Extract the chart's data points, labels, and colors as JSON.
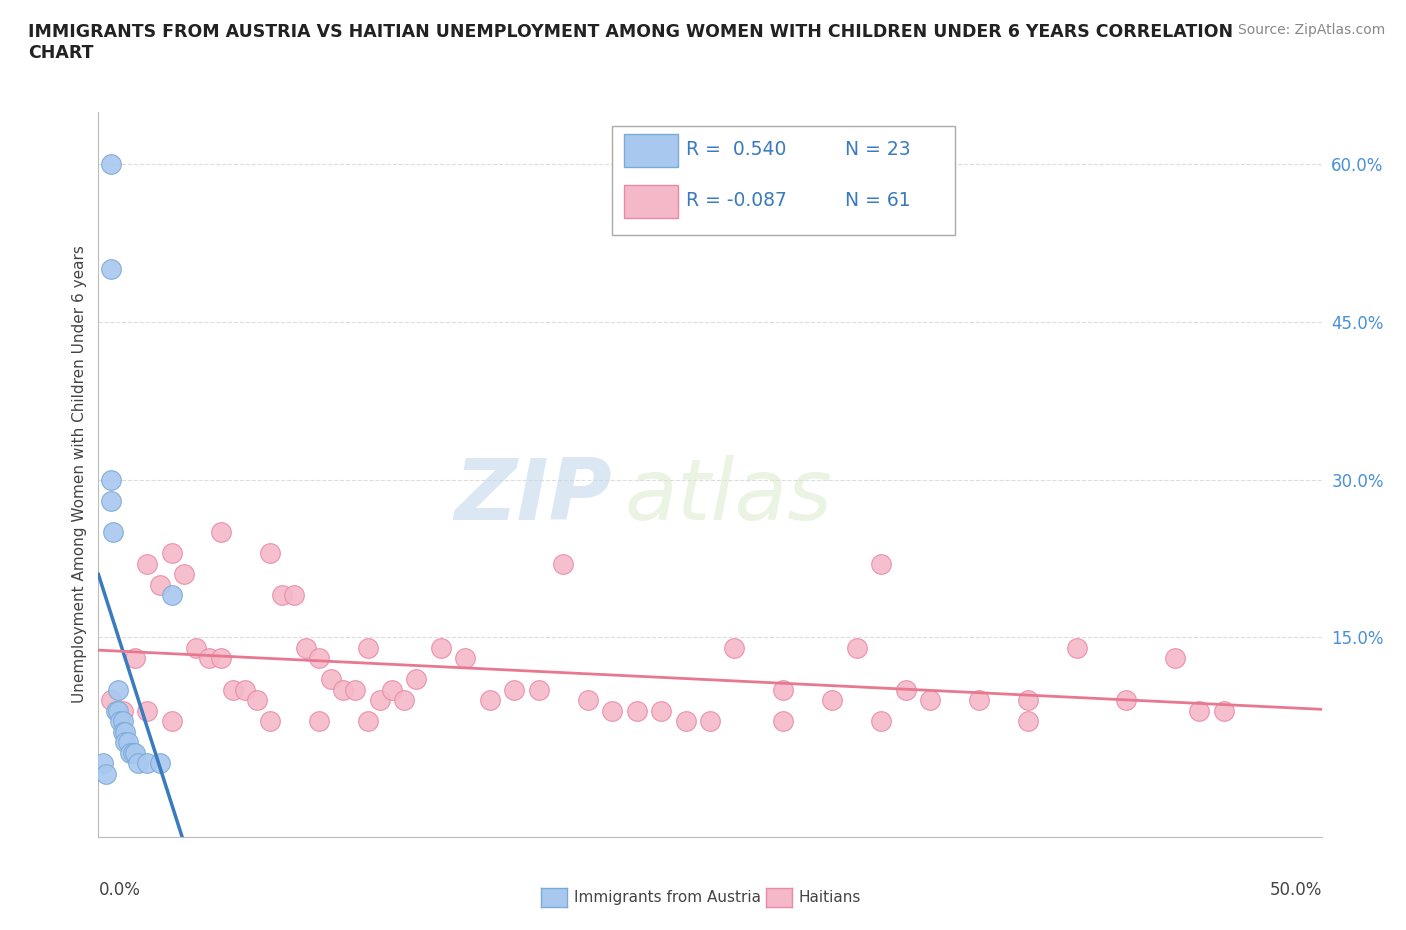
{
  "title": "IMMIGRANTS FROM AUSTRIA VS HAITIAN UNEMPLOYMENT AMONG WOMEN WITH CHILDREN UNDER 6 YEARS CORRELATION\nCHART",
  "source": "Source: ZipAtlas.com",
  "ylabel": "Unemployment Among Women with Children Under 6 years",
  "xlim": [
    0.0,
    0.5
  ],
  "ylim": [
    -0.04,
    0.65
  ],
  "austria_color": "#a8c8f0",
  "austria_edge": "#7baad4",
  "haitian_color": "#f5b8c8",
  "haitian_edge": "#e88aa8",
  "austria_trend_color": "#3a7abf",
  "haitian_trend_color": "#e87890",
  "legend_R_austria": "R =  0.540",
  "legend_N_austria": "N = 23",
  "legend_R_haitian": "R = -0.087",
  "legend_N_haitian": "N = 61",
  "austria_R": 0.54,
  "austria_N": 23,
  "haitian_R": -0.087,
  "haitian_N": 61,
  "austria_scatter_x": [
    0.005,
    0.005,
    0.005,
    0.005,
    0.006,
    0.007,
    0.008,
    0.008,
    0.009,
    0.01,
    0.01,
    0.011,
    0.011,
    0.012,
    0.013,
    0.014,
    0.015,
    0.016,
    0.02,
    0.025,
    0.03,
    0.002,
    0.003
  ],
  "austria_scatter_y": [
    0.6,
    0.5,
    0.3,
    0.28,
    0.25,
    0.08,
    0.1,
    0.08,
    0.07,
    0.07,
    0.06,
    0.06,
    0.05,
    0.05,
    0.04,
    0.04,
    0.04,
    0.03,
    0.03,
    0.03,
    0.19,
    0.03,
    0.02
  ],
  "haitian_scatter_x": [
    0.005,
    0.01,
    0.015,
    0.02,
    0.025,
    0.03,
    0.035,
    0.04,
    0.045,
    0.05,
    0.055,
    0.06,
    0.065,
    0.07,
    0.075,
    0.08,
    0.085,
    0.09,
    0.095,
    0.1,
    0.105,
    0.11,
    0.115,
    0.12,
    0.125,
    0.13,
    0.14,
    0.15,
    0.16,
    0.17,
    0.18,
    0.19,
    0.2,
    0.21,
    0.22,
    0.23,
    0.24,
    0.25,
    0.26,
    0.28,
    0.3,
    0.31,
    0.32,
    0.33,
    0.34,
    0.36,
    0.38,
    0.4,
    0.42,
    0.44,
    0.45,
    0.46,
    0.02,
    0.03,
    0.05,
    0.07,
    0.09,
    0.11,
    0.28,
    0.32,
    0.38
  ],
  "haitian_scatter_y": [
    0.09,
    0.08,
    0.13,
    0.22,
    0.2,
    0.23,
    0.21,
    0.14,
    0.13,
    0.13,
    0.1,
    0.1,
    0.09,
    0.23,
    0.19,
    0.19,
    0.14,
    0.13,
    0.11,
    0.1,
    0.1,
    0.14,
    0.09,
    0.1,
    0.09,
    0.11,
    0.14,
    0.13,
    0.09,
    0.1,
    0.1,
    0.22,
    0.09,
    0.08,
    0.08,
    0.08,
    0.07,
    0.07,
    0.14,
    0.1,
    0.09,
    0.14,
    0.22,
    0.1,
    0.09,
    0.09,
    0.09,
    0.14,
    0.09,
    0.13,
    0.08,
    0.08,
    0.08,
    0.07,
    0.25,
    0.07,
    0.07,
    0.07,
    0.07,
    0.07,
    0.07
  ],
  "right_ytick_vals": [
    0.15,
    0.3,
    0.45,
    0.6
  ],
  "right_ytick_labels": [
    "15.0%",
    "30.0%",
    "45.0%",
    "60.0%"
  ],
  "watermark_zip": "ZIP",
  "watermark_atlas": "atlas",
  "background_color": "#ffffff",
  "grid_color": "#dddddd"
}
